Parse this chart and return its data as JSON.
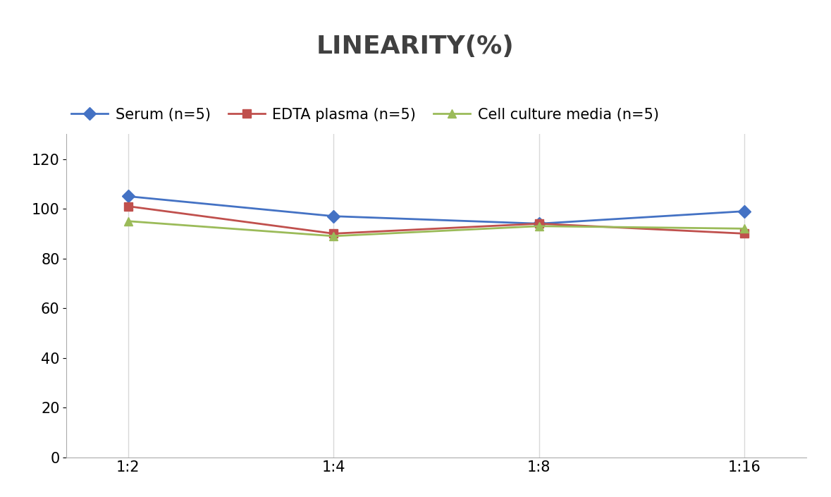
{
  "title": "LINEARITY(%)",
  "x_labels": [
    "1:2",
    "1:4",
    "1:8",
    "1:16"
  ],
  "x_positions": [
    0,
    1,
    2,
    3
  ],
  "series": [
    {
      "label": "Serum (n=5)",
      "values": [
        105,
        97,
        94,
        99
      ],
      "color": "#4472C4",
      "marker": "D",
      "marker_color": "#4472C4"
    },
    {
      "label": "EDTA plasma (n=5)",
      "values": [
        101,
        90,
        94,
        90
      ],
      "color": "#C0504D",
      "marker": "s",
      "marker_color": "#C0504D"
    },
    {
      "label": "Cell culture media (n=5)",
      "values": [
        95,
        89,
        93,
        92
      ],
      "color": "#9BBB59",
      "marker": "^",
      "marker_color": "#9BBB59"
    }
  ],
  "ylim": [
    0,
    130
  ],
  "yticks": [
    0,
    20,
    40,
    60,
    80,
    100,
    120
  ],
  "background_color": "#ffffff",
  "title_fontsize": 26,
  "legend_fontsize": 15,
  "tick_fontsize": 15,
  "grid_color": "#d8d8d8",
  "line_width": 2.0,
  "marker_size": 9,
  "title_color": "#404040"
}
